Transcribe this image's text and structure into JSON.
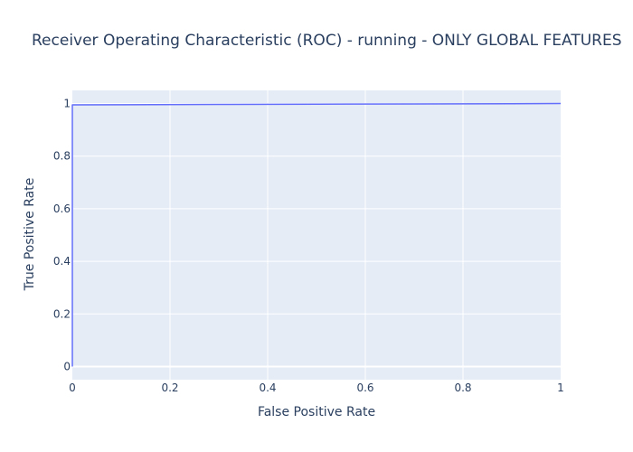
{
  "chart_data": {
    "type": "line",
    "title": "Receiver Operating Characteristic (ROC) - running - ONLY GLOBAL FEATURES",
    "xlabel": "False Positive Rate",
    "ylabel": "True Positive Rate",
    "xlim": [
      0,
      1
    ],
    "ylim": [
      -0.05,
      1.05
    ],
    "x_ticks": [
      0,
      0.2,
      0.4,
      0.6,
      0.8,
      1
    ],
    "x_tick_labels": [
      "0",
      "0.2",
      "0.4",
      "0.6",
      "0.8",
      "1"
    ],
    "y_ticks": [
      0,
      0.2,
      0.4,
      0.6,
      0.8,
      1
    ],
    "y_tick_labels": [
      "0",
      "0.2",
      "0.4",
      "0.6",
      "0.8",
      "1"
    ],
    "grid": true,
    "series": [
      {
        "x": [
          0,
          0,
          0.1,
          0.3,
          0.5,
          0.7,
          0.9,
          1
        ],
        "y": [
          0,
          0.995,
          0.9955,
          0.9965,
          0.9975,
          0.9985,
          0.9995,
          1
        ]
      }
    ],
    "colors": {
      "plot_bg": "#e5ecf6",
      "grid": "#ffffff",
      "line": "#636efa",
      "text": "#2a3f5f"
    }
  }
}
